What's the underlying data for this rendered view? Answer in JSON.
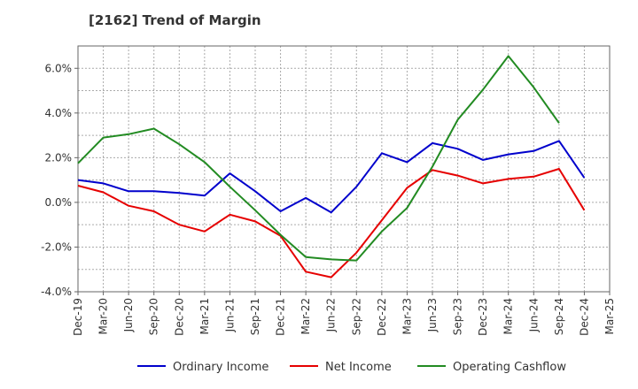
{
  "title": "[2162]  Trend of Margin",
  "chart_data": {
    "type": "line",
    "title": "[2162]  Trend of Margin",
    "xlabel": "",
    "ylabel": "",
    "categories": [
      "Dec-19",
      "Mar-20",
      "Jun-20",
      "Sep-20",
      "Dec-20",
      "Mar-21",
      "Jun-21",
      "Sep-21",
      "Dec-21",
      "Mar-22",
      "Jun-22",
      "Sep-22",
      "Dec-22",
      "Mar-23",
      "Jun-23",
      "Sep-23",
      "Dec-23",
      "Mar-24",
      "Jun-24",
      "Sep-24",
      "Dec-24",
      "Mar-25"
    ],
    "ylim": [
      -4.0,
      7.0
    ],
    "y_ticks": [
      -4.0,
      -2.0,
      0.0,
      2.0,
      4.0,
      6.0
    ],
    "y_tick_labels": [
      "-4.0%",
      "-2.0%",
      "0.0%",
      "2.0%",
      "4.0%",
      "6.0%"
    ],
    "grid": true,
    "legend_position": "bottom",
    "series": [
      {
        "name": "Ordinary Income",
        "color": "#0000cc",
        "values": [
          1.0,
          0.85,
          0.5,
          0.5,
          0.42,
          0.3,
          1.3,
          0.5,
          -0.4,
          0.2,
          -0.45,
          0.7,
          2.2,
          1.8,
          2.65,
          2.4,
          1.9,
          2.15,
          2.3,
          2.75,
          1.1,
          null
        ]
      },
      {
        "name": "Net Income",
        "color": "#e60000",
        "values": [
          0.75,
          0.45,
          -0.15,
          -0.4,
          -1.0,
          -1.3,
          -0.55,
          -0.85,
          -1.5,
          -3.1,
          -3.35,
          -2.25,
          -0.8,
          0.65,
          1.45,
          1.2,
          0.85,
          1.05,
          1.15,
          1.5,
          -0.35,
          null
        ]
      },
      {
        "name": "Operating Cashflow",
        "color": "#228b22",
        "values": [
          1.75,
          2.9,
          3.05,
          3.3,
          2.6,
          1.8,
          0.7,
          -0.35,
          -1.45,
          -2.45,
          -2.55,
          -2.6,
          -1.3,
          -0.25,
          1.6,
          3.7,
          5.05,
          6.55,
          5.15,
          3.55,
          null,
          null
        ]
      }
    ]
  }
}
